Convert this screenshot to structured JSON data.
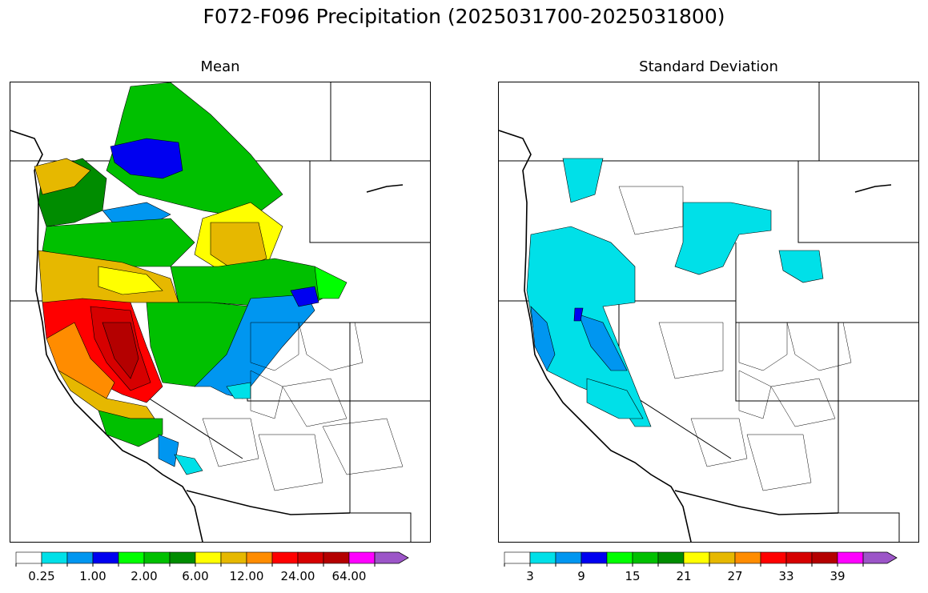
{
  "figure": {
    "title": "F072-F096 Precipitation (2025031700-2025031800)"
  },
  "panels": [
    {
      "id": "mean",
      "title": "Mean",
      "colorbar": {
        "colors": [
          "#ffffff",
          "#00e0e8",
          "#0096f0",
          "#0000f0",
          "#00ff00",
          "#00c000",
          "#008c00",
          "#ffff00",
          "#e6b800",
          "#ff8c00",
          "#ff0000",
          "#d60000",
          "#b40000",
          "#ff00ff",
          "#9c55c8"
        ],
        "tick_labels": [
          "0.25",
          "1.00",
          "2.00",
          "6.00",
          "12.00",
          "24.00",
          "64.00"
        ],
        "extend": "max"
      }
    },
    {
      "id": "stddev",
      "title": "Standard Deviation",
      "colorbar": {
        "colors": [
          "#ffffff",
          "#00e0e8",
          "#0096f0",
          "#0000f0",
          "#00ff00",
          "#00c000",
          "#008c00",
          "#ffff00",
          "#e6b800",
          "#ff8c00",
          "#ff0000",
          "#d60000",
          "#b40000",
          "#ff00ff",
          "#9c55c8"
        ],
        "tick_labels": [
          "3",
          "9",
          "15",
          "21",
          "27",
          "33",
          "39"
        ],
        "extend": "max"
      }
    }
  ]
}
